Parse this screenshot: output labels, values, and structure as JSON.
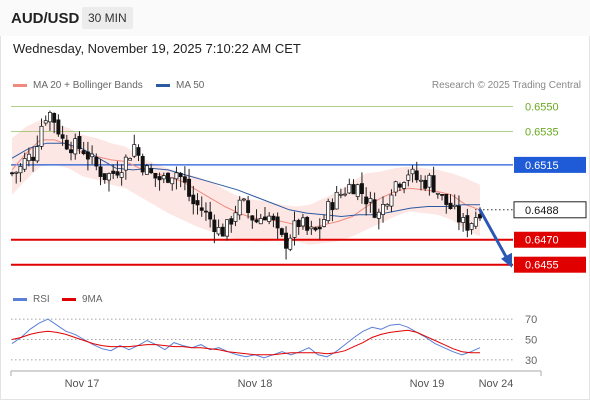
{
  "header": {
    "symbol": "AUD/USD",
    "timeframe": "30 MIN",
    "datetime": "Wednesday, November 19, 2025 7:10:22 AM CET",
    "credit": "Research © 2025 Trading Central"
  },
  "legend": {
    "ma20": {
      "label": "MA 20 + Bollinger Bands",
      "color": "#f08a7e"
    },
    "ma50": {
      "label": "MA 50",
      "color": "#2c5aa0"
    }
  },
  "rsi_legend": {
    "rsi": {
      "label": "RSI",
      "color": "#5b7fd6"
    },
    "ma9": {
      "label": "9MA",
      "color": "#e00000"
    }
  },
  "chart_data": [
    {
      "type": "candlestick",
      "title": "AUD/USD",
      "timeframe": "30 MIN",
      "x_ticks": [
        "Nov 17",
        "Nov 18",
        "Nov 19",
        "Nov 24"
      ],
      "ylim": [
        0.6444,
        0.6557
      ],
      "levels": [
        {
          "value": "0.6550",
          "kind": "resistance",
          "color": "#6aa820"
        },
        {
          "value": "0.6535",
          "kind": "resistance",
          "color": "#6aa820"
        },
        {
          "value": "0.6515",
          "kind": "pivot",
          "color": "#1f5bd6"
        },
        {
          "value": "0.6470",
          "kind": "support",
          "color": "#e00000"
        },
        {
          "value": "0.6455",
          "kind": "support",
          "color": "#e00000"
        }
      ],
      "last_price": "0.6488",
      "forecast_arrow": {
        "from": 0.6488,
        "to": 0.6455
      },
      "close_path": [
        0.651,
        0.6512,
        0.6519,
        0.6521,
        0.6538,
        0.6548,
        0.6541,
        0.653,
        0.6527,
        0.6526,
        0.6524,
        0.6518,
        0.6512,
        0.6508,
        0.651,
        0.6514,
        0.6519,
        0.6527,
        0.6516,
        0.651,
        0.6507,
        0.6506,
        0.651,
        0.6511,
        0.6503,
        0.6492,
        0.649,
        0.6485,
        0.648,
        0.6474,
        0.6478,
        0.6488,
        0.6492,
        0.6485,
        0.6481,
        0.6486,
        0.6483,
        0.6472,
        0.6468,
        0.6476,
        0.6481,
        0.6475,
        0.6474,
        0.6479,
        0.649,
        0.6495,
        0.6499,
        0.6503,
        0.6502,
        0.6496,
        0.649,
        0.6485,
        0.6495,
        0.6504,
        0.6506,
        0.6511,
        0.6507,
        0.6504,
        0.6506,
        0.65,
        0.6493,
        0.6489,
        0.6483,
        0.6478,
        0.6482,
        0.6488
      ],
      "ma20_path": [
        0.6512,
        0.6522,
        0.653,
        0.653,
        0.6527,
        0.6522,
        0.652,
        0.6518,
        0.6517,
        0.6513,
        0.651,
        0.6508,
        0.6505,
        0.65,
        0.6495,
        0.649,
        0.6486,
        0.6483,
        0.6482,
        0.6481,
        0.6479,
        0.6477,
        0.6479,
        0.6481,
        0.6484,
        0.649,
        0.6495,
        0.6499,
        0.6501,
        0.65,
        0.6499,
        0.6497,
        0.6491,
        0.6488
      ],
      "bb_upper_path": [
        0.6531,
        0.6538,
        0.6542,
        0.654,
        0.6537,
        0.6533,
        0.6531,
        0.6528,
        0.6526,
        0.652,
        0.6516,
        0.6513,
        0.651,
        0.6508,
        0.6505,
        0.65,
        0.6496,
        0.6494,
        0.6493,
        0.6491,
        0.649,
        0.6491,
        0.6495,
        0.6499,
        0.6505,
        0.651,
        0.6511,
        0.6513,
        0.6514,
        0.6513,
        0.6512,
        0.651,
        0.6507,
        0.6503
      ],
      "bb_lower_path": [
        0.6497,
        0.6506,
        0.6514,
        0.6515,
        0.6513,
        0.6508,
        0.6506,
        0.6503,
        0.6501,
        0.6496,
        0.6491,
        0.6486,
        0.6482,
        0.6478,
        0.6475,
        0.6472,
        0.647,
        0.6469,
        0.6469,
        0.647,
        0.6469,
        0.6467,
        0.6468,
        0.6469,
        0.6472,
        0.6476,
        0.648,
        0.6484,
        0.6487,
        0.6486,
        0.6485,
        0.6482,
        0.6476,
        0.6472
      ],
      "ma50_path": [
        0.6519,
        0.6525,
        0.6528,
        0.6528,
        0.6525,
        0.6519,
        0.6513,
        0.6512,
        0.6513,
        0.6512,
        0.6509,
        0.6506,
        0.6503,
        0.65,
        0.6496,
        0.6492,
        0.6488,
        0.6486,
        0.6485,
        0.6484,
        0.6485,
        0.6485,
        0.6487,
        0.6489,
        0.649,
        0.649,
        0.6491,
        0.6491
      ]
    },
    {
      "type": "line",
      "title": "RSI",
      "ylim": [
        25,
        75
      ],
      "y_ticks": [
        "70",
        "50",
        "30"
      ],
      "series": [
        {
          "name": "RSI",
          "values": [
            46,
            52,
            60,
            66,
            70,
            64,
            58,
            55,
            50,
            45,
            41,
            39,
            44,
            40,
            44,
            49,
            45,
            40,
            47,
            44,
            42,
            45,
            40,
            42,
            38,
            35,
            33,
            35,
            32,
            35,
            38,
            35,
            38,
            42,
            35,
            33,
            38,
            45,
            52,
            58,
            62,
            60,
            64,
            65,
            62,
            57,
            52,
            46,
            42,
            38,
            35,
            38,
            42
          ]
        },
        {
          "name": "9MA",
          "values": [
            50,
            52,
            55,
            57,
            58,
            57,
            55,
            52,
            49,
            46,
            44,
            43,
            43,
            43,
            44,
            45,
            45,
            44,
            43,
            43,
            42,
            42,
            41,
            40,
            38,
            37,
            36,
            35,
            35,
            35,
            36,
            37,
            37,
            37,
            37,
            36,
            37,
            39,
            43,
            47,
            52,
            55,
            57,
            58,
            59,
            57,
            53,
            49,
            45,
            41,
            38,
            37,
            37
          ]
        }
      ]
    }
  ]
}
